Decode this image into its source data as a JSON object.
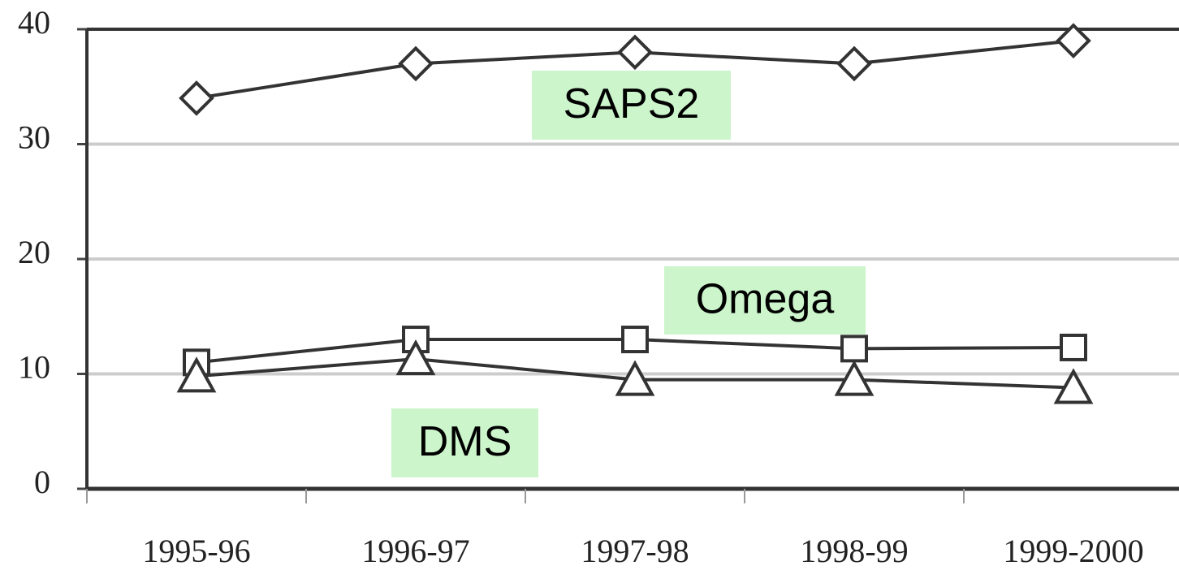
{
  "chart_data": {
    "type": "line",
    "categories": [
      "1995-96",
      "1996-97",
      "1997-98",
      "1998-99",
      "1999-2000"
    ],
    "series": [
      {
        "name": "SAPS2",
        "color": "#333333",
        "marker": "diamond",
        "values": [
          34,
          37,
          38,
          37,
          39
        ]
      },
      {
        "name": "Omega",
        "color": "#333333",
        "marker": "square",
        "values": [
          11,
          13,
          13,
          12.2,
          12.3
        ]
      },
      {
        "name": "DMS",
        "color": "#333333",
        "marker": "triangle",
        "values": [
          9.8,
          11.3,
          9.5,
          9.5,
          8.8
        ]
      }
    ],
    "ylim": [
      0,
      40
    ],
    "yticks": [
      0,
      10,
      20,
      30,
      40
    ],
    "grid": true
  }
}
